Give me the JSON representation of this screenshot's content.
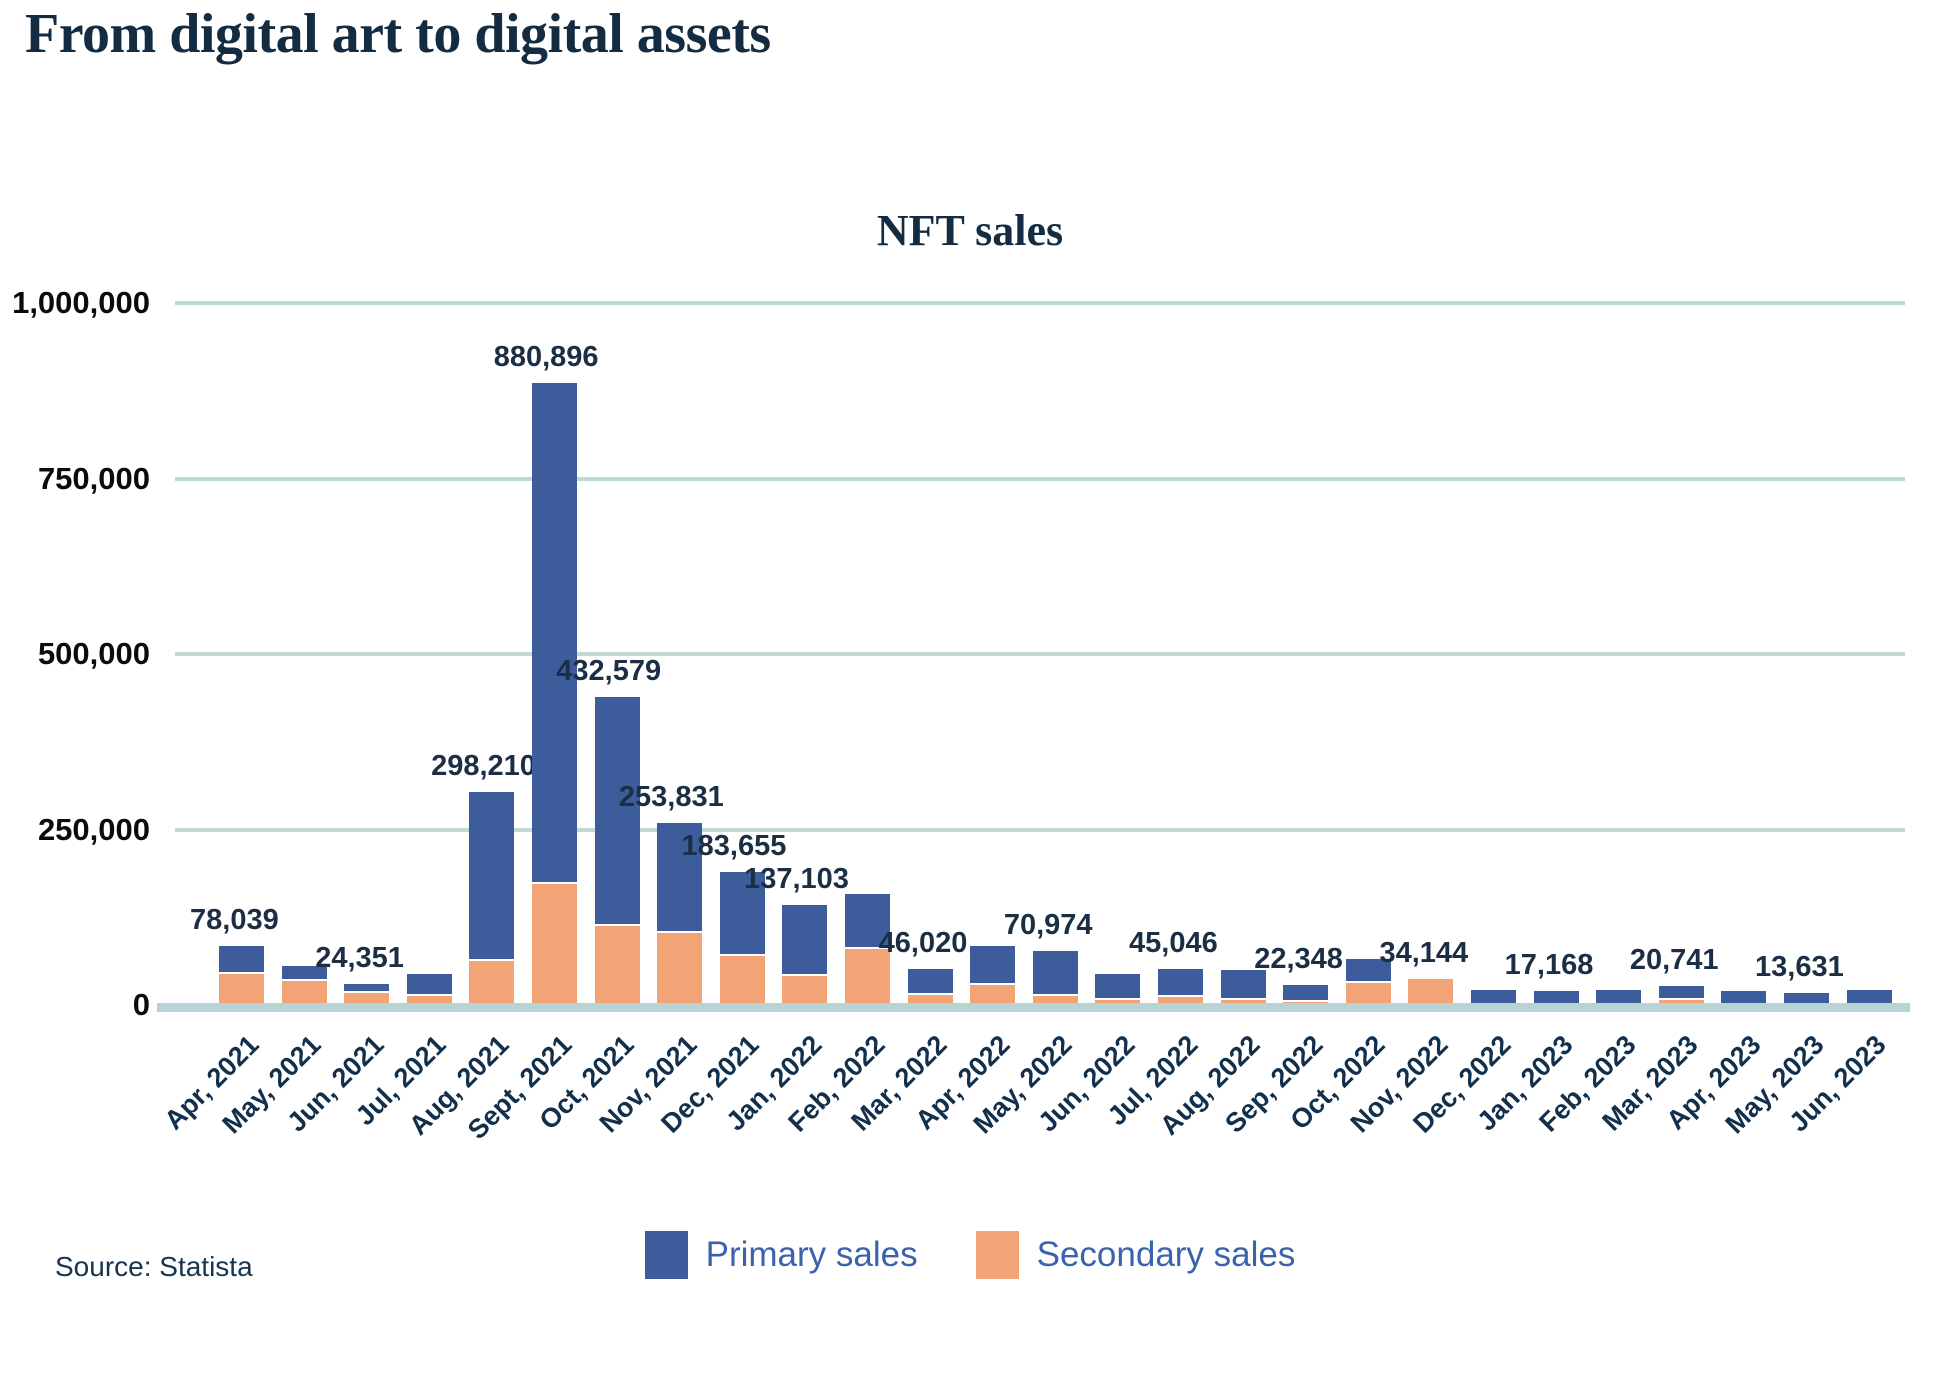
{
  "page": {
    "title": "From digital art to digital assets",
    "source": "Source: Statista"
  },
  "chart": {
    "title": "NFT sales",
    "legend": [
      {
        "label": "Primary sales",
        "color": "#3c5c9c"
      },
      {
        "label": "Secondary sales",
        "color": "#f2a476"
      }
    ]
  },
  "chart_data": {
    "type": "bar",
    "stacked": true,
    "title": "NFT sales",
    "xlabel": "",
    "ylabel": "",
    "ylim": [
      0,
      1000000
    ],
    "grid": "horizontal",
    "legend_position": "bottom",
    "y_ticks": [
      {
        "value": 1000000,
        "label": "1,000,000"
      },
      {
        "value": 750000,
        "label": "750,000"
      },
      {
        "value": 500000,
        "label": "500,000"
      },
      {
        "value": 250000,
        "label": "250,000"
      },
      {
        "value": 0,
        "label": "0"
      }
    ],
    "categories": [
      "Apr, 2021",
      "May, 2021",
      "Jun, 2021",
      "Jul, 2021",
      "Aug, 2021",
      "Sept, 2021",
      "Oct, 2021",
      "Nov, 2021",
      "Dec, 2021",
      "Jan, 2022",
      "Feb, 2022",
      "Mar, 2022",
      "Apr, 2022",
      "May, 2022",
      "Jun, 2022",
      "Jul, 2022",
      "Aug, 2022",
      "Sep, 2022",
      "Oct, 2022",
      "Nov, 2022",
      "Dec, 2022",
      "Jan, 2023",
      "Feb, 2023",
      "Mar, 2023",
      "Apr, 2023",
      "May, 2023",
      "Jun, 2023"
    ],
    "series": [
      {
        "name": "Primary sales",
        "color": "#3c5c9c",
        "values": [
          36039,
          18000,
          10351,
          28000,
          238210,
          710896,
          322579,
          153831,
          116655,
          98103,
          75000,
          35020,
          53000,
          60974,
          34000,
          36046,
          39000,
          20848,
          32000,
          0,
          18000,
          17168,
          18000,
          15741,
          17000,
          13631,
          19000
        ]
      },
      {
        "name": "Secondary sales",
        "color": "#f2a476",
        "values": [
          42000,
          32000,
          14000,
          10000,
          60000,
          170000,
          110000,
          100000,
          67000,
          39000,
          77000,
          11000,
          25000,
          10000,
          4000,
          9000,
          5000,
          1500,
          28000,
          34144,
          0,
          0,
          0,
          5000,
          0,
          0,
          0
        ]
      }
    ],
    "bar_total_labels": [
      "78,039",
      null,
      "24,351",
      null,
      "298,210",
      "880,896",
      "432,579",
      "253,831",
      "183,655",
      "137,103",
      null,
      "46,020",
      null,
      "70,974",
      null,
      "45,046",
      null,
      "22,348",
      null,
      "34,144",
      null,
      "17,168",
      null,
      "20,741",
      null,
      "13,631",
      null
    ]
  }
}
